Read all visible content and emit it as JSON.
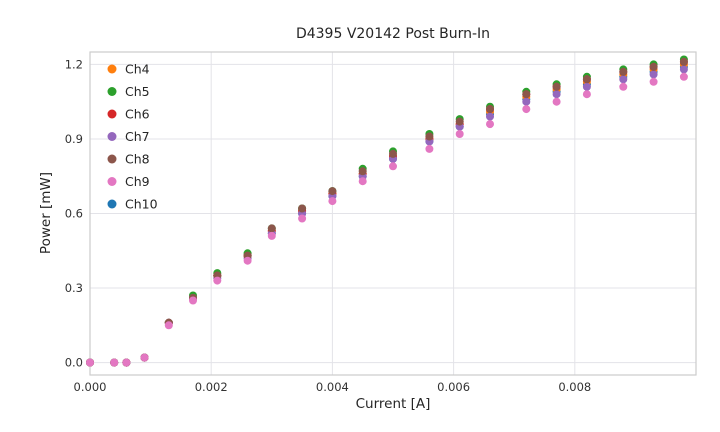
{
  "chart_data": {
    "type": "scatter",
    "title": "D4395 V20142 Post Burn-In",
    "xlabel": "Current [A]",
    "ylabel": "Power [mW]",
    "xlim": [
      0,
      0.01
    ],
    "ylim": [
      -0.05,
      1.25
    ],
    "xticks": [
      0.0,
      0.002,
      0.004,
      0.006,
      0.008
    ],
    "xtick_labels": [
      "0.000",
      "0.002",
      "0.004",
      "0.006",
      "0.008"
    ],
    "yticks": [
      0.0,
      0.3,
      0.6,
      0.9,
      1.2
    ],
    "ytick_labels": [
      "0.0",
      "0.3",
      "0.6",
      "0.9",
      "1.2"
    ],
    "grid": true,
    "legend_position": "upper left",
    "x": [
      0.0,
      0.0004,
      0.0006,
      0.0009,
      0.0013,
      0.0017,
      0.0021,
      0.0026,
      0.003,
      0.0035,
      0.004,
      0.0045,
      0.005,
      0.0056,
      0.0061,
      0.0066,
      0.0072,
      0.0077,
      0.0082,
      0.0088,
      0.0093,
      0.0098
    ],
    "series": [
      {
        "name": "Ch4",
        "color": "#ff7f0e",
        "values": [
          0.0,
          0.0,
          0.0,
          0.02,
          0.16,
          0.26,
          0.35,
          0.43,
          0.53,
          0.61,
          0.68,
          0.76,
          0.83,
          0.9,
          0.96,
          1.01,
          1.07,
          1.1,
          1.13,
          1.16,
          1.18,
          1.2
        ]
      },
      {
        "name": "Ch5",
        "color": "#2ca02c",
        "values": [
          0.0,
          0.0,
          0.0,
          0.02,
          0.16,
          0.27,
          0.36,
          0.44,
          0.54,
          0.62,
          0.69,
          0.78,
          0.85,
          0.92,
          0.98,
          1.03,
          1.09,
          1.12,
          1.15,
          1.18,
          1.2,
          1.22
        ]
      },
      {
        "name": "Ch6",
        "color": "#d62728",
        "values": [
          0.0,
          0.0,
          0.0,
          0.02,
          0.16,
          0.26,
          0.35,
          0.43,
          0.53,
          0.61,
          0.68,
          0.76,
          0.83,
          0.9,
          0.96,
          1.02,
          1.08,
          1.11,
          1.14,
          1.17,
          1.19,
          1.21
        ]
      },
      {
        "name": "Ch7",
        "color": "#9467bd",
        "values": [
          0.0,
          0.0,
          0.0,
          0.02,
          0.16,
          0.26,
          0.34,
          0.42,
          0.52,
          0.6,
          0.67,
          0.75,
          0.82,
          0.89,
          0.95,
          0.99,
          1.05,
          1.08,
          1.11,
          1.14,
          1.16,
          1.18
        ]
      },
      {
        "name": "Ch8",
        "color": "#8c564b",
        "values": [
          0.0,
          0.0,
          0.0,
          0.02,
          0.16,
          0.26,
          0.35,
          0.43,
          0.54,
          0.62,
          0.69,
          0.77,
          0.84,
          0.91,
          0.97,
          1.02,
          1.08,
          1.11,
          1.14,
          1.17,
          1.19,
          1.21
        ]
      },
      {
        "name": "Ch9",
        "color": "#e377c2",
        "values": [
          0.0,
          0.0,
          0.0,
          0.02,
          0.15,
          0.25,
          0.33,
          0.41,
          0.51,
          0.58,
          0.65,
          0.73,
          0.79,
          0.86,
          0.92,
          0.96,
          1.02,
          1.05,
          1.08,
          1.11,
          1.13,
          1.15
        ]
      },
      {
        "name": "Ch10",
        "color": "#1f77b4",
        "values": [
          0.0,
          0.0,
          0.0,
          0.02,
          0.16,
          0.26,
          0.35,
          0.43,
          0.52,
          0.6,
          0.67,
          0.75,
          0.82,
          0.89,
          0.95,
          1.0,
          1.06,
          1.09,
          1.12,
          1.15,
          1.17,
          1.19
        ]
      }
    ],
    "style": {
      "grid_color": "#e3e3e8",
      "border_color": "#cccccc",
      "tick_label_color": "#333333",
      "marker_radius": 4
    }
  }
}
